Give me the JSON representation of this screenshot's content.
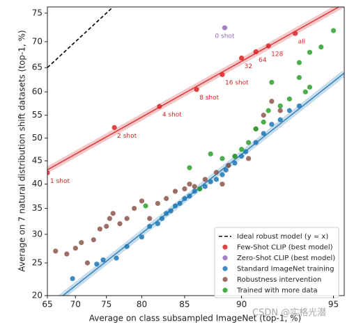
{
  "chart_data": {
    "type": "scatter",
    "scale": "logit",
    "x_label": "Average on class subsampled ImageNet (top-1, %)",
    "y_label": "Average on 7 natural distribution shift datasets (top-1, %)",
    "xlim": [
      65,
      95.4
    ],
    "ylim": [
      20,
      76
    ],
    "xticks": [
      65,
      70,
      75,
      80,
      85,
      90,
      95
    ],
    "yticks": [
      20,
      25,
      30,
      35,
      40,
      45,
      50,
      55,
      60,
      65,
      70,
      75
    ],
    "legend": "lower right",
    "reference_line": {
      "name": "Ideal robust model (y = x)",
      "color": "#000000",
      "style": "dashed"
    },
    "watermark": "CSDN @实格光潜",
    "series": [
      {
        "name": "Few-Shot CLIP (best model)",
        "color": "#d62728",
        "fit": true,
        "x": [
          65,
          76.2,
          82.2,
          86.2,
          88.5,
          90.0,
          91.0,
          91.8,
          93.3
        ],
        "values": [
          42.4,
          52.3,
          56.9,
          60.5,
          63.6,
          66.9,
          68.1,
          69.2,
          71.5
        ],
        "labels": [
          "1 shot",
          "2 shot",
          "4 shot",
          "8 shot",
          "16 shot",
          "32",
          "64",
          "128",
          "all"
        ]
      },
      {
        "name": "Zero-Shot CLIP (best model)",
        "color": "#9467bd",
        "x": [
          88.7
        ],
        "values": [
          72.5
        ],
        "labels": [
          "0 shot"
        ]
      },
      {
        "name": "Standard ImageNet training",
        "color": "#1f77b4",
        "fit": true,
        "x": [
          69.5,
          73.5,
          74.5,
          76.5,
          78,
          80,
          81,
          82,
          82.5,
          83,
          83.5,
          84,
          84.5,
          85,
          85.5,
          86,
          86.5,
          87,
          87.5,
          88,
          88.5,
          88.8,
          89,
          89.5,
          90,
          90.3,
          91,
          91.5,
          92,
          92.5,
          93,
          93.5
        ],
        "values": [
          22.5,
          24.8,
          25.5,
          25.8,
          27.8,
          29.5,
          31.5,
          32,
          33,
          34,
          34.5,
          35.5,
          36,
          37,
          37.5,
          38.5,
          39,
          39.5,
          40.5,
          41,
          42,
          43,
          44,
          44.5,
          46,
          47,
          49,
          51,
          53,
          54,
          56,
          57
        ]
      },
      {
        "name": "Robustness intervention",
        "color": "#8c564b",
        "x": [
          66.5,
          68.5,
          70,
          71,
          72,
          73,
          74,
          75,
          75.5,
          76,
          77,
          78,
          79,
          80,
          81,
          82,
          83,
          84,
          85,
          85.5,
          86,
          87,
          88,
          88.5,
          89,
          89.5,
          90.5,
          91,
          91.5,
          92,
          92.5
        ],
        "values": [
          27,
          26.5,
          27.5,
          28.5,
          25,
          29,
          31,
          31.5,
          33,
          34,
          32,
          33,
          35,
          36.5,
          33,
          36,
          37,
          38.5,
          39,
          40,
          39.5,
          41,
          42.5,
          40,
          44,
          46,
          45.5,
          52,
          55,
          58,
          56
        ]
      },
      {
        "name": "Trained with more data",
        "color": "#2ca02c",
        "x": [
          80.5,
          85.5,
          86.5,
          87.5,
          88.5,
          89.5,
          90,
          90.5,
          91,
          91.5,
          91.8,
          92,
          92.5,
          93,
          93.5,
          93.8,
          94,
          93.5,
          94,
          94.5,
          95
        ],
        "values": [
          35.5,
          43.5,
          39,
          46.5,
          45.5,
          46,
          47.5,
          49,
          52,
          53.5,
          56,
          62,
          57,
          58.5,
          63,
          60,
          61,
          66,
          68,
          69,
          72
        ]
      }
    ]
  }
}
